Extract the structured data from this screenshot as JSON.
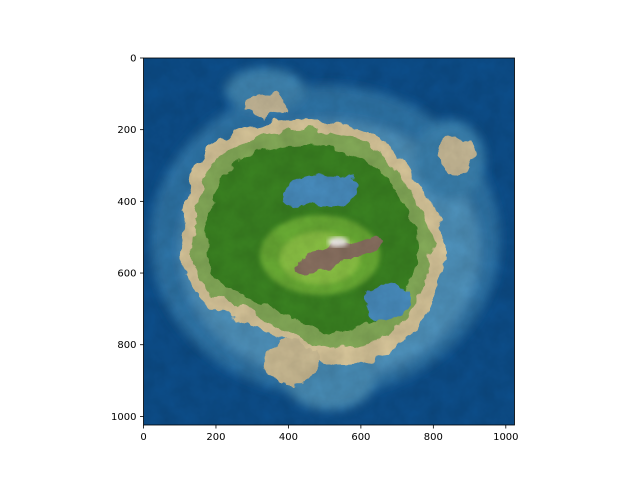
{
  "chart_data": {
    "type": "heatmap",
    "title": "",
    "xlabel": "",
    "ylabel": "",
    "xlim": [
      0,
      1024
    ],
    "ylim": [
      1024,
      0
    ],
    "y_axis_inverted": true,
    "x_ticks": [
      0,
      200,
      400,
      600,
      800,
      1000
    ],
    "y_ticks": [
      0,
      200,
      400,
      600,
      800,
      1000
    ],
    "x_tick_labels": [
      "0",
      "200",
      "400",
      "600",
      "800",
      "1000"
    ],
    "y_tick_labels": [
      "0",
      "200",
      "400",
      "600",
      "800",
      "1000"
    ],
    "grid": false,
    "colorbar": false,
    "colormap": [
      {
        "level": "deep water",
        "color": "#0b4a86"
      },
      {
        "level": "shallow water",
        "color": "#5b9cc2"
      },
      {
        "level": "sand",
        "color": "#e6d3a8"
      },
      {
        "level": "grassland",
        "color": "#5aa531"
      },
      {
        "level": "forest",
        "color": "#2f7a1a"
      },
      {
        "level": "rock",
        "color": "#8a7060"
      },
      {
        "level": "snow",
        "color": "#ffffff"
      }
    ]
  }
}
